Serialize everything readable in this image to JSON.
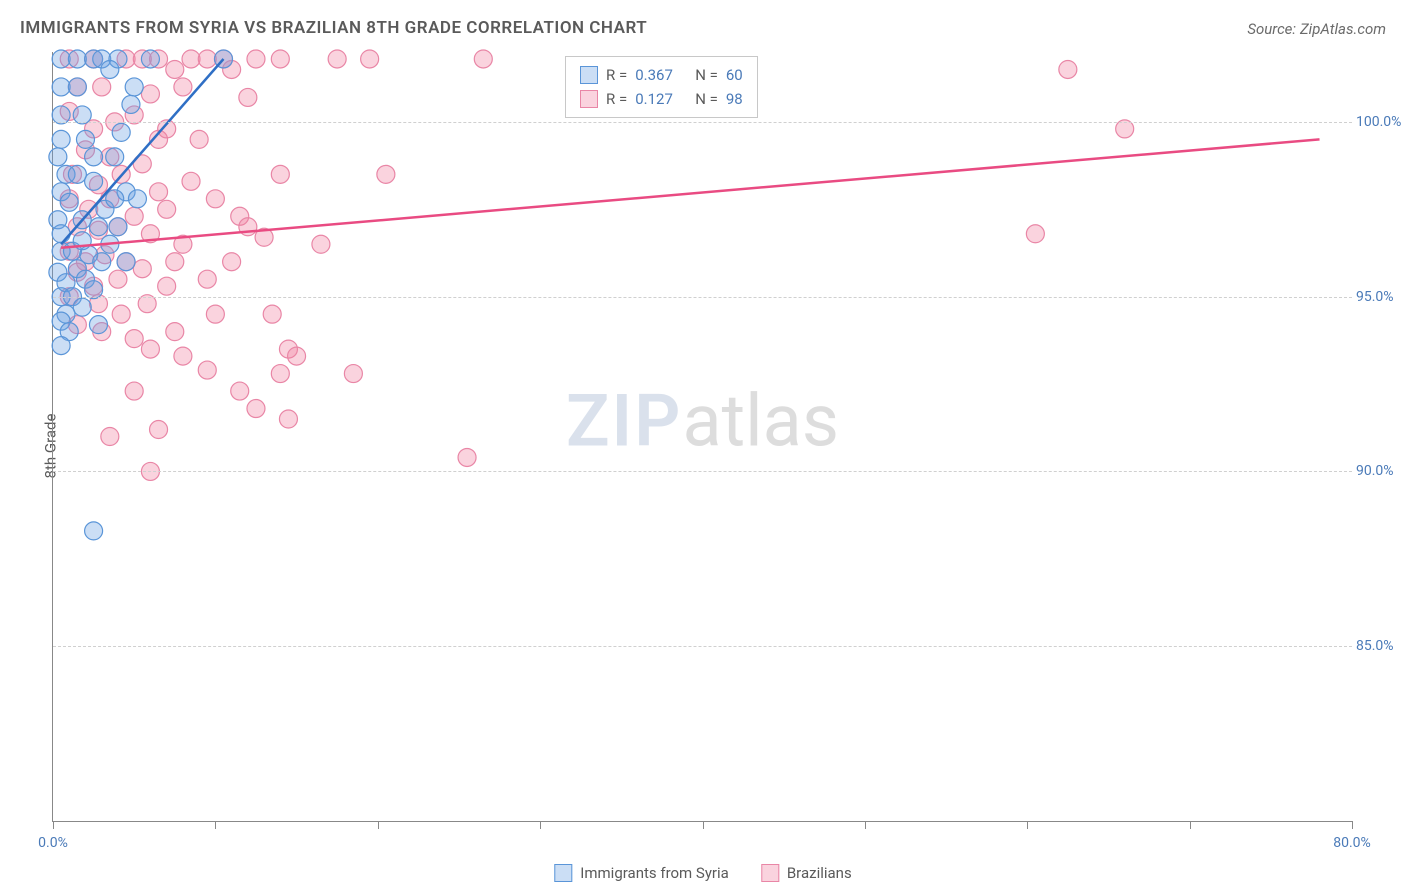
{
  "title": "IMMIGRANTS FROM SYRIA VS BRAZILIAN 8TH GRADE CORRELATION CHART",
  "source_label": "Source:",
  "source_name": "ZipAtlas.com",
  "watermark_a": "ZIP",
  "watermark_b": "atlas",
  "chart": {
    "type": "scatter",
    "ylabel": "8th Grade",
    "xlim": [
      0,
      80
    ],
    "ylim": [
      80,
      102
    ],
    "x_ticks": [
      0,
      10,
      20,
      30,
      40,
      50,
      60,
      70,
      80
    ],
    "x_tick_labels": {
      "0": "0.0%",
      "80": "80.0%"
    },
    "y_gridlines": [
      85,
      90,
      95,
      100
    ],
    "y_tick_labels": {
      "85": "85.0%",
      "90": "90.0%",
      "95": "95.0%",
      "100": "100.0%"
    },
    "grid_color": "#d0d0d0",
    "axis_label_color": "#4a7ab8",
    "series": [
      {
        "key": "syria",
        "label": "Immigrants from Syria",
        "fill": "rgba(105,160,225,0.35)",
        "stroke": "#5a95d8",
        "line_color": "#2f6fc5",
        "marker_radius": 9,
        "stats": {
          "R": "0.367",
          "N": "60"
        },
        "trend": {
          "x1": 0.5,
          "y1": 96.5,
          "x2": 10.5,
          "y2": 101.8
        },
        "points": [
          [
            0.5,
            101.8
          ],
          [
            1.5,
            101.8
          ],
          [
            2.5,
            101.8
          ],
          [
            3.0,
            101.8
          ],
          [
            4.0,
            101.8
          ],
          [
            6.0,
            101.8
          ],
          [
            10.5,
            101.8
          ],
          [
            0.5,
            101.0
          ],
          [
            1.5,
            101.0
          ],
          [
            3.5,
            101.5
          ],
          [
            5.0,
            101.0
          ],
          [
            0.5,
            100.2
          ],
          [
            1.8,
            100.2
          ],
          [
            4.8,
            100.5
          ],
          [
            4.2,
            99.7
          ],
          [
            0.5,
            99.5
          ],
          [
            2.0,
            99.5
          ],
          [
            3.8,
            99.0
          ],
          [
            0.3,
            99.0
          ],
          [
            0.8,
            98.5
          ],
          [
            1.5,
            98.5
          ],
          [
            2.5,
            98.3
          ],
          [
            4.5,
            98.0
          ],
          [
            5.2,
            97.8
          ],
          [
            0.5,
            98.0
          ],
          [
            1.0,
            97.7
          ],
          [
            3.2,
            97.5
          ],
          [
            4.0,
            97.0
          ],
          [
            0.3,
            97.2
          ],
          [
            1.8,
            97.2
          ],
          [
            2.8,
            97.0
          ],
          [
            0.5,
            96.8
          ],
          [
            3.5,
            96.5
          ],
          [
            0.5,
            96.3
          ],
          [
            1.2,
            96.3
          ],
          [
            2.2,
            96.2
          ],
          [
            3.0,
            96.0
          ],
          [
            4.5,
            96.0
          ],
          [
            0.3,
            95.7
          ],
          [
            1.5,
            95.8
          ],
          [
            0.8,
            95.4
          ],
          [
            2.0,
            95.5
          ],
          [
            3.8,
            97.8
          ],
          [
            0.5,
            95.0
          ],
          [
            1.2,
            95.0
          ],
          [
            2.5,
            95.2
          ],
          [
            0.8,
            94.5
          ],
          [
            1.8,
            94.7
          ],
          [
            0.5,
            94.3
          ],
          [
            1.0,
            94.0
          ],
          [
            2.8,
            94.2
          ],
          [
            0.5,
            93.6
          ],
          [
            1.8,
            96.6
          ],
          [
            2.5,
            99.0
          ],
          [
            2.5,
            88.3
          ]
        ]
      },
      {
        "key": "braz",
        "label": "Brazilians",
        "fill": "rgba(240,130,160,0.35)",
        "stroke": "#e986a6",
        "line_color": "#e94b82",
        "marker_radius": 9,
        "stats": {
          "R": "0.127",
          "N": "98"
        },
        "trend": {
          "x1": 0.5,
          "y1": 96.4,
          "x2": 78,
          "y2": 99.5
        },
        "points": [
          [
            1.0,
            101.8
          ],
          [
            2.5,
            101.8
          ],
          [
            4.5,
            101.8
          ],
          [
            5.5,
            101.8
          ],
          [
            6.5,
            101.8
          ],
          [
            7.5,
            101.5
          ],
          [
            8.5,
            101.8
          ],
          [
            9.5,
            101.8
          ],
          [
            10.5,
            101.8
          ],
          [
            11.0,
            101.5
          ],
          [
            12.5,
            101.8
          ],
          [
            14.0,
            101.8
          ],
          [
            17.5,
            101.8
          ],
          [
            19.5,
            101.8
          ],
          [
            26.5,
            101.8
          ],
          [
            62.5,
            101.5
          ],
          [
            1.5,
            101.0
          ],
          [
            3.0,
            101.0
          ],
          [
            6.0,
            100.8
          ],
          [
            8.0,
            101.0
          ],
          [
            12.0,
            100.7
          ],
          [
            1.0,
            100.3
          ],
          [
            2.5,
            99.8
          ],
          [
            3.8,
            100.0
          ],
          [
            5.0,
            100.2
          ],
          [
            6.5,
            99.5
          ],
          [
            2.0,
            99.2
          ],
          [
            3.5,
            99.0
          ],
          [
            5.5,
            98.8
          ],
          [
            7.0,
            99.8
          ],
          [
            9.0,
            99.5
          ],
          [
            66.0,
            99.8
          ],
          [
            1.2,
            98.5
          ],
          [
            2.8,
            98.2
          ],
          [
            4.2,
            98.5
          ],
          [
            6.5,
            98.0
          ],
          [
            8.5,
            98.3
          ],
          [
            14.0,
            98.5
          ],
          [
            20.5,
            98.5
          ],
          [
            1.0,
            97.8
          ],
          [
            2.2,
            97.5
          ],
          [
            3.5,
            97.8
          ],
          [
            5.0,
            97.3
          ],
          [
            7.0,
            97.5
          ],
          [
            10.0,
            97.8
          ],
          [
            11.5,
            97.3
          ],
          [
            1.5,
            97.0
          ],
          [
            2.8,
            96.9
          ],
          [
            4.0,
            97.0
          ],
          [
            6.0,
            96.8
          ],
          [
            8.0,
            96.5
          ],
          [
            12.0,
            97.0
          ],
          [
            13.0,
            96.7
          ],
          [
            16.5,
            96.5
          ],
          [
            60.5,
            96.8
          ],
          [
            1.0,
            96.3
          ],
          [
            2.0,
            96.0
          ],
          [
            3.2,
            96.2
          ],
          [
            4.5,
            96.0
          ],
          [
            7.5,
            96.0
          ],
          [
            11.0,
            96.0
          ],
          [
            1.5,
            95.7
          ],
          [
            2.5,
            95.3
          ],
          [
            4.0,
            95.5
          ],
          [
            5.5,
            95.8
          ],
          [
            7.0,
            95.3
          ],
          [
            9.5,
            95.5
          ],
          [
            1.0,
            95.0
          ],
          [
            2.8,
            94.8
          ],
          [
            4.2,
            94.5
          ],
          [
            5.8,
            94.8
          ],
          [
            10.0,
            94.5
          ],
          [
            13.5,
            94.5
          ],
          [
            1.5,
            94.2
          ],
          [
            3.0,
            94.0
          ],
          [
            5.0,
            93.8
          ],
          [
            7.5,
            94.0
          ],
          [
            14.5,
            93.5
          ],
          [
            6.0,
            93.5
          ],
          [
            8.0,
            93.3
          ],
          [
            15.0,
            93.3
          ],
          [
            9.5,
            92.9
          ],
          [
            14.0,
            92.8
          ],
          [
            18.5,
            92.8
          ],
          [
            5.0,
            92.3
          ],
          [
            11.5,
            92.3
          ],
          [
            12.5,
            91.8
          ],
          [
            14.5,
            91.5
          ],
          [
            6.5,
            91.2
          ],
          [
            3.5,
            91.0
          ],
          [
            25.5,
            90.4
          ],
          [
            6.0,
            90.0
          ]
        ]
      }
    ]
  },
  "legend_top": {
    "R_label": "R =",
    "N_label": "N ="
  },
  "bottom_legend": {
    "a": "Immigrants from Syria",
    "b": "Brazilians"
  }
}
